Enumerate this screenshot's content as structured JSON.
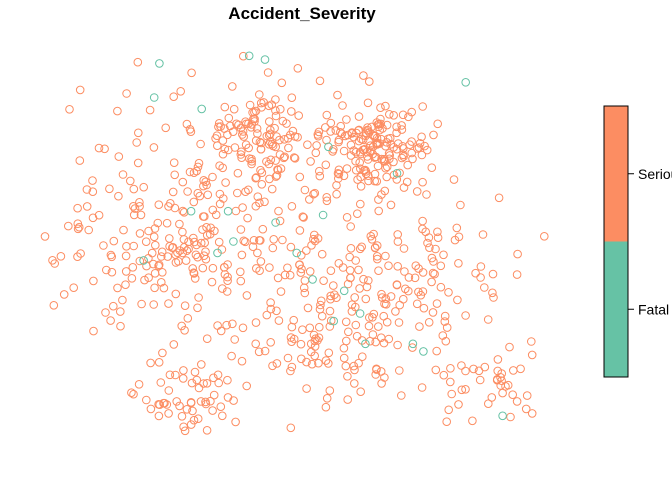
{
  "chart_data": {
    "type": "scatter",
    "title": "Accident_Severity",
    "xlabel": "",
    "ylabel": "",
    "grid": false,
    "axes_visible": false,
    "legend_position": "right",
    "point_style": "open-circle",
    "xlim": [
      0,
      1
    ],
    "ylim": [
      0,
      1
    ],
    "legend": {
      "type": "colorbar",
      "entries": [
        {
          "label": "Serious",
          "color": "#FC8D62"
        },
        {
          "label": "Fatal",
          "color": "#66C2A5"
        }
      ]
    },
    "series": [
      {
        "name": "Serious",
        "color": "#FC8D62",
        "n": 880,
        "clusters": [
          [
            0.64,
            0.76,
            0.05,
            0.7
          ],
          [
            0.42,
            0.78,
            0.05,
            0.5
          ],
          [
            0.4,
            0.6,
            0.2,
            1.0
          ],
          [
            0.25,
            0.5,
            0.1,
            0.8
          ],
          [
            0.7,
            0.4,
            0.1,
            0.7
          ],
          [
            0.55,
            0.25,
            0.08,
            0.5
          ],
          [
            0.3,
            0.1,
            0.05,
            0.3
          ],
          [
            0.85,
            0.12,
            0.05,
            0.2
          ]
        ],
        "bounds": [
          0.0,
          0.0,
          1.0,
          1.0
        ],
        "seed": 7
      },
      {
        "name": "Fatal",
        "color": "#66C2A5",
        "x": [
          0.23,
          0.22,
          0.4,
          0.31,
          0.43,
          0.45,
          0.68,
          0.36,
          0.29,
          0.54,
          0.55,
          0.49,
          0.52,
          0.58,
          0.56,
          0.61,
          0.62,
          0.71,
          0.73,
          0.81,
          0.88,
          0.37,
          0.34,
          0.2
        ],
        "y": [
          0.97,
          0.88,
          0.99,
          0.85,
          0.98,
          0.55,
          0.68,
          0.58,
          0.58,
          0.57,
          0.75,
          0.47,
          0.4,
          0.37,
          0.29,
          0.31,
          0.23,
          0.23,
          0.21,
          0.92,
          0.04,
          0.5,
          0.47,
          0.45
        ]
      }
    ]
  }
}
